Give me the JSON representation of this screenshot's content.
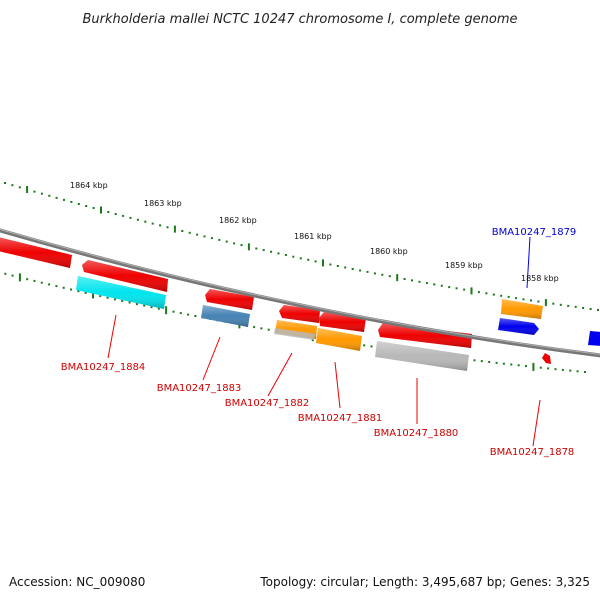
{
  "title": "Burkholderia mallei NCTC 10247 chromosome I, complete genome",
  "footer": {
    "accession": "Accession: NC_009080",
    "summary": "Topology: circular; Length: 3,495,687 bp; Genes: 3,325"
  },
  "colors": {
    "forward_cds": "#ee0000",
    "forward_rna": "#0000ee",
    "reverse_cds_cyan": "#00e5ee",
    "reverse_cds_steel": "#4682b4",
    "reverse_cds_orange": "#ff9900",
    "reverse_cds_gray": "#b8b8b8",
    "backbone": "#808080",
    "tick": "#1a7a1a"
  },
  "kbp_labels": [
    "1864 kbp",
    "1863 kbp",
    "1862 kbp",
    "1861 kbp",
    "1860 kbp",
    "1859 kbp",
    "1858 kbp"
  ],
  "genes": [
    {
      "id": "g1884",
      "label": "BMA10247_1884",
      "strand": "reverse",
      "color": "cyan"
    },
    {
      "id": "g1883",
      "label": "BMA10247_1883",
      "strand": "reverse",
      "color": "steel"
    },
    {
      "id": "g1882",
      "label": "BMA10247_1882",
      "strand": "reverse",
      "color": "orange"
    },
    {
      "id": "g1881",
      "label": "BMA10247_1881",
      "strand": "reverse",
      "color": "orange"
    },
    {
      "id": "g1880",
      "label": "BMA10247_1880",
      "strand": "reverse",
      "color": "gray"
    },
    {
      "id": "g1879",
      "label": "BMA10247_1879",
      "strand": "forward",
      "color": "orange"
    },
    {
      "id": "g1878",
      "label": "BMA10247_1878",
      "strand": "forward",
      "color": "red"
    }
  ]
}
